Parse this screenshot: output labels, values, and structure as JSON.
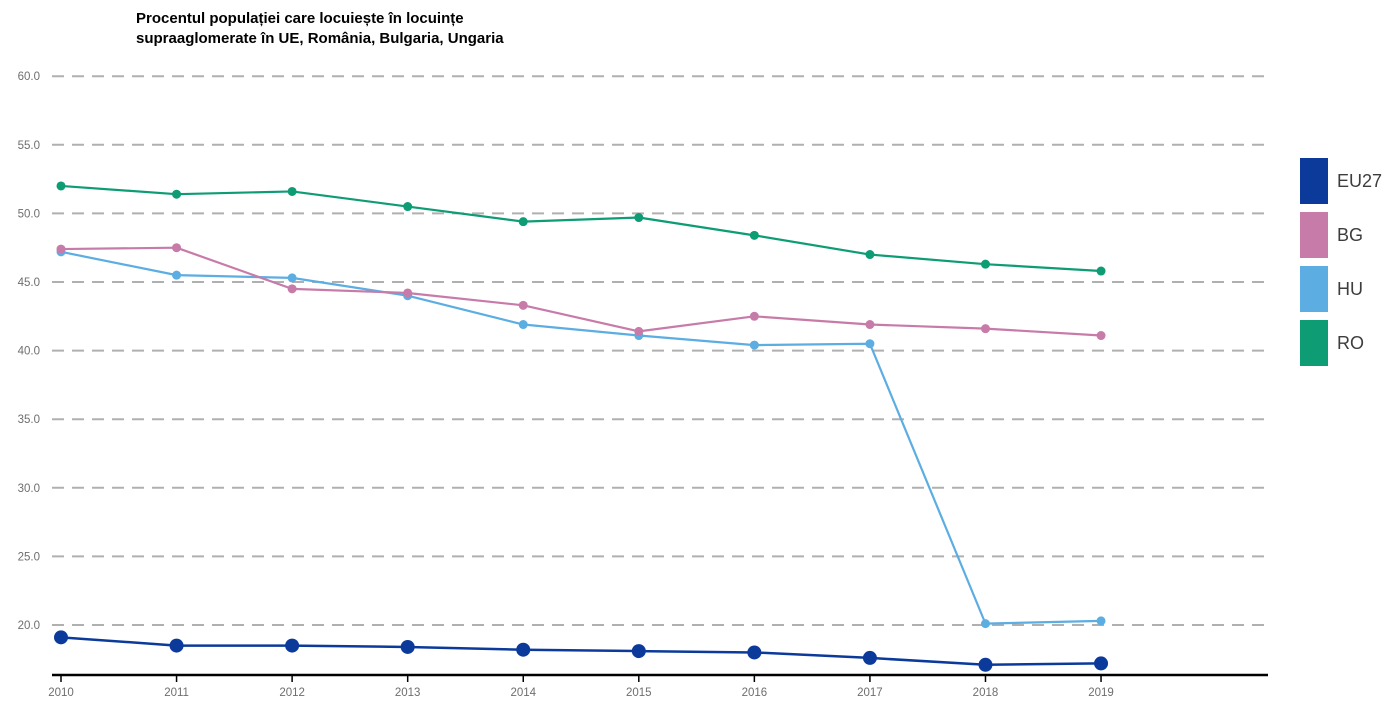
{
  "chart_data": {
    "type": "line",
    "title": "Procentul populației care locuiește în locuințe\nsupraaglomerate în UE, România, Bulgaria, Ungaria",
    "x": [
      2010,
      2011,
      2012,
      2013,
      2014,
      2015,
      2016,
      2017,
      2018,
      2019
    ],
    "x_labels": [
      "2010",
      "2011",
      "2012",
      "2013",
      "2014",
      "2015",
      "2016",
      "2017",
      "2018",
      "2019"
    ],
    "yticks": [
      {
        "value": 60,
        "label": "60.0"
      },
      {
        "value": 55,
        "label": "55.0"
      },
      {
        "value": 50,
        "label": "50.0"
      },
      {
        "value": 45,
        "label": "45.0"
      },
      {
        "value": 40,
        "label": "40.0"
      },
      {
        "value": 35,
        "label": "35.0"
      },
      {
        "value": 30,
        "label": "30.0"
      },
      {
        "value": 25,
        "label": "25.0"
      },
      {
        "value": 20,
        "label": "20.0"
      }
    ],
    "ylim": [
      16.3,
      63.6
    ],
    "grid": "horizontal-dashed",
    "legend_position": "right",
    "series": [
      {
        "name": "EU27",
        "color": "#0c3a9b",
        "values": [
          19.1,
          18.5,
          18.5,
          18.4,
          18.2,
          18.1,
          18.0,
          17.6,
          17.1,
          17.2
        ]
      },
      {
        "name": "BG",
        "color": "#c77ba9",
        "values": [
          47.4,
          47.5,
          44.5,
          44.2,
          43.3,
          41.4,
          42.5,
          41.9,
          41.6,
          41.1
        ]
      },
      {
        "name": "HU",
        "color": "#5cade2",
        "values": [
          47.2,
          45.5,
          45.3,
          44.0,
          41.9,
          41.1,
          40.4,
          40.5,
          20.1,
          20.3
        ]
      },
      {
        "name": "RO",
        "color": "#0d9c74",
        "values": [
          52.0,
          51.4,
          51.6,
          50.5,
          49.4,
          49.7,
          48.4,
          47.0,
          46.3,
          45.8
        ]
      }
    ],
    "style_colors": {
      "grid": "#b0b0b0",
      "axis": "#000000",
      "tick_label": "#6e6e6e",
      "legend_text": "#3d3d3d",
      "title": "#000000",
      "background": "#ffffff"
    }
  }
}
